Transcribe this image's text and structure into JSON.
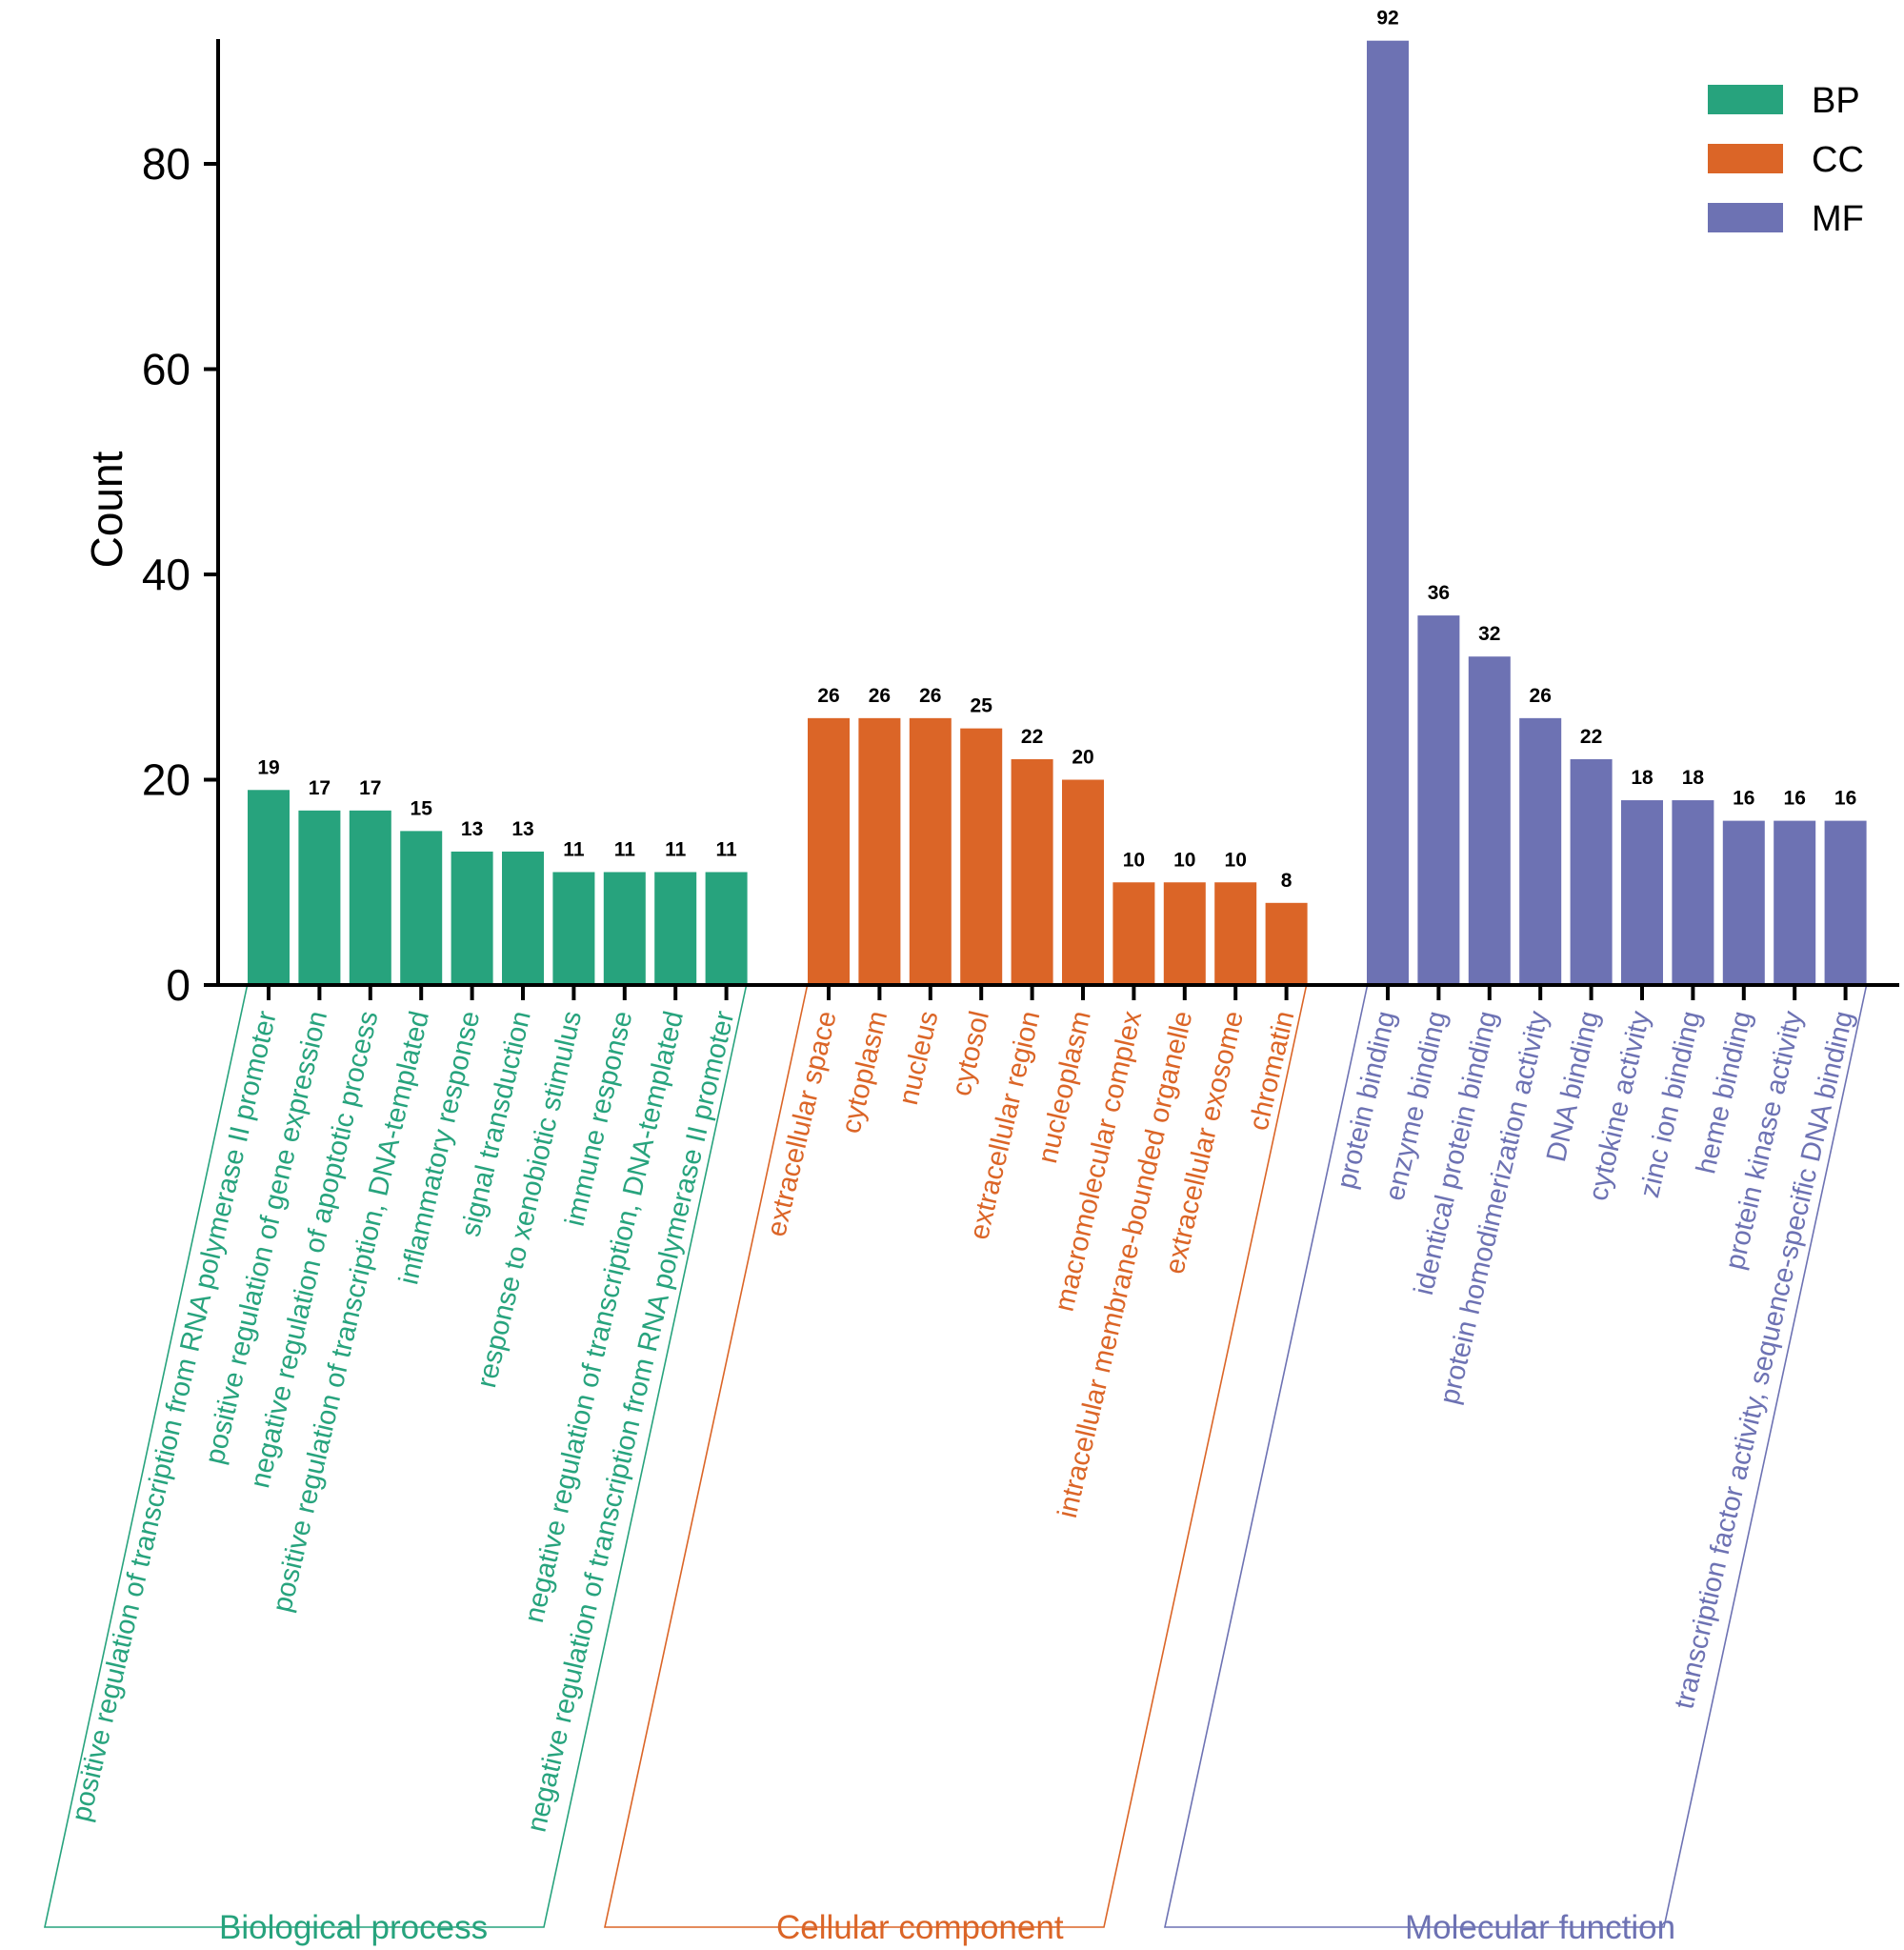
{
  "chart_data": {
    "type": "bar",
    "title": "",
    "xlabel": "",
    "ylabel": "Count",
    "ylim": [
      0,
      92
    ],
    "yticks": [
      0,
      20,
      40,
      60,
      80
    ],
    "grid": false,
    "legend_position": "top-right",
    "show_value_labels": true,
    "series": [
      {
        "name": "BP",
        "group_label": "Biological process",
        "color": "#27A37D",
        "categories": [
          "positive regulation of transcription from RNA polymerase II promoter",
          "positive regulation of gene expression",
          "negative regulation of apoptotic process",
          "positive regulation of transcription, DNA-templated",
          "inflammatory response",
          "signal transduction",
          "response to xenobiotic stimulus",
          "immune response",
          "negative regulation of transcription, DNA-templated",
          "negative regulation of transcription from RNA polymerase II promoter"
        ],
        "values": [
          19,
          17,
          17,
          15,
          13,
          13,
          11,
          11,
          11,
          11
        ]
      },
      {
        "name": "CC",
        "group_label": "Cellular component",
        "color": "#DB6527",
        "categories": [
          "extracellular space",
          "cytoplasm",
          "nucleus",
          "cytosol",
          "extracellular region",
          "nucleoplasm",
          "macromolecular complex",
          "intracellular membrane-bounded organelle",
          "extracellular exosome",
          "chromatin"
        ],
        "values": [
          26,
          26,
          26,
          25,
          22,
          20,
          10,
          10,
          10,
          8
        ]
      },
      {
        "name": "MF",
        "group_label": "Molecular function",
        "color": "#6D72B3",
        "categories": [
          "protein binding",
          "enzyme binding",
          "identical protein binding",
          "protein homodimerization activity",
          "DNA binding",
          "cytokine activity",
          "zinc ion binding",
          "heme binding",
          "protein kinase activity",
          "transcription factor activity, sequence-specific DNA binding"
        ],
        "values": [
          92,
          36,
          32,
          26,
          22,
          18,
          18,
          16,
          16,
          16
        ]
      }
    ]
  }
}
